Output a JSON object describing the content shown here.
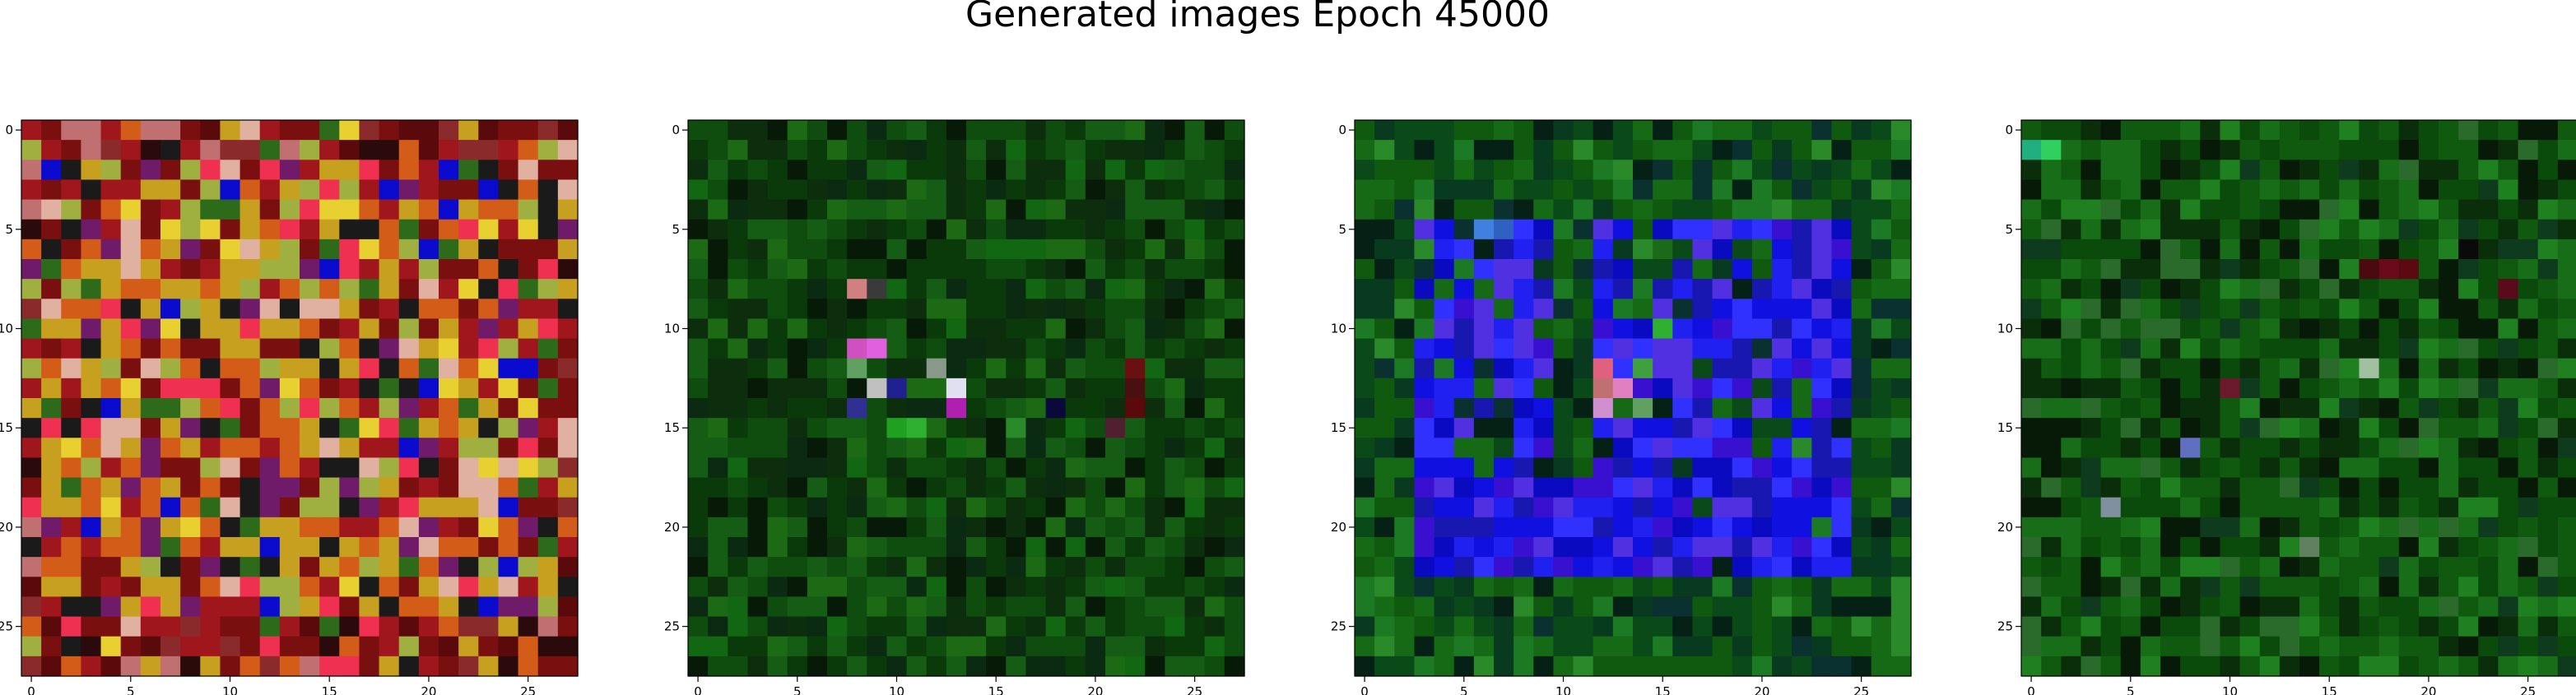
{
  "figure": {
    "title": "Generated images Epoch 45000"
  },
  "chart_data": [
    {
      "type": "heatmap",
      "rows": 28,
      "cols": 28,
      "xticks": [
        0,
        5,
        10,
        15,
        20,
        25
      ],
      "yticks": [
        0,
        5,
        10,
        15,
        20,
        25
      ],
      "xlim": [
        -0.5,
        27.5
      ],
      "ylim": [
        27.5,
        -0.5
      ],
      "palette": [
        "#7a0f10",
        "#a0161d",
        "#c8a020",
        "#d35d18",
        "#1a1a1a",
        "#0b0bd0",
        "#a0b040",
        "#e0b0a0",
        "#6f1b6a",
        "#2d6b1a",
        "#e7d030",
        "#f03050"
      ],
      "palette_weights": [
        10,
        8,
        10,
        9,
        5,
        3,
        6,
        4,
        4,
        3,
        3,
        3
      ],
      "edge_palette": [
        "#5a0a0a",
        "#7a0f10",
        "#a0161d",
        "#8a2a2a",
        "#c07070",
        "#2a0a0a"
      ],
      "seed": 11
    },
    {
      "type": "heatmap",
      "rows": 28,
      "cols": 28,
      "xticks": [
        0,
        5,
        10,
        15,
        20,
        25
      ],
      "yticks": [
        0,
        5,
        10,
        15,
        20,
        25
      ],
      "xlim": [
        -0.5,
        27.5
      ],
      "ylim": [
        27.5,
        -0.5
      ],
      "palette": [
        "#0a3a0a",
        "#0f4d0f",
        "#155c15",
        "#0c2e0c",
        "#071a07",
        "#1c6a14",
        "#0a2a12",
        "#126812"
      ],
      "palette_weights": [
        12,
        12,
        9,
        10,
        7,
        5,
        5,
        4
      ],
      "spots": [
        [
          11,
          8,
          "#d050c0"
        ],
        [
          11,
          9,
          "#e060e0"
        ],
        [
          12,
          8,
          "#60a060"
        ],
        [
          13,
          9,
          "#c0c0c0"
        ],
        [
          13,
          13,
          "#e0e0f0"
        ],
        [
          14,
          13,
          "#b020b0"
        ],
        [
          13,
          10,
          "#202090"
        ],
        [
          14,
          8,
          "#303090"
        ],
        [
          8,
          8,
          "#d08080"
        ],
        [
          8,
          9,
          "#3a3a3a"
        ],
        [
          12,
          12,
          "#8a9a8a"
        ],
        [
          13,
          22,
          "#4a1010"
        ],
        [
          12,
          22,
          "#6a1010"
        ],
        [
          14,
          22,
          "#5a0a0a"
        ],
        [
          15,
          21,
          "#502030"
        ],
        [
          14,
          18,
          "#0a0a3a"
        ],
        [
          15,
          10,
          "#20a020"
        ],
        [
          15,
          11,
          "#30b030"
        ],
        [
          15,
          16,
          "#2a8a2a"
        ]
      ],
      "seed": 23
    },
    {
      "type": "heatmap",
      "rows": 28,
      "cols": 28,
      "xticks": [
        0,
        5,
        10,
        15,
        20,
        25
      ],
      "yticks": [
        0,
        5,
        10,
        15,
        20,
        25
      ],
      "xlim": [
        -0.5,
        27.5
      ],
      "ylim": [
        27.5,
        -0.5
      ],
      "palette": [
        "#0a4a18",
        "#0f5a0f",
        "#166a16",
        "#083a20",
        "#052015",
        "#1d7a24",
        "#0a3030",
        "#2a8a2a"
      ],
      "palette_weights": [
        11,
        11,
        9,
        7,
        6,
        5,
        4,
        3
      ],
      "blue_palette": [
        "#1010e0",
        "#2020f0",
        "#3a10d0",
        "#0a0ac0",
        "#5030e0",
        "#1818b0",
        "#3030ff"
      ],
      "blue_regions": [
        [
          5,
          3,
          22,
          9
        ],
        [
          5,
          12,
          22,
          24
        ],
        [
          8,
          16,
          12,
          24
        ],
        [
          18,
          3,
          22,
          24
        ]
      ],
      "spots": [
        [
          12,
          12,
          "#e06080"
        ],
        [
          13,
          12,
          "#c07070"
        ],
        [
          13,
          13,
          "#e080c0"
        ],
        [
          14,
          12,
          "#d090d0"
        ],
        [
          14,
          14,
          "#60a060"
        ],
        [
          12,
          14,
          "#40a040"
        ],
        [
          6,
          14,
          "#2a8a2a"
        ],
        [
          6,
          15,
          "#1a6a1a"
        ],
        [
          10,
          15,
          "#30b030"
        ],
        [
          5,
          6,
          "#4080e0"
        ],
        [
          5,
          7,
          "#3060c0"
        ]
      ],
      "seed": 37
    },
    {
      "type": "heatmap",
      "rows": 28,
      "cols": 28,
      "xticks": [
        0,
        5,
        10,
        15,
        20,
        25
      ],
      "yticks": [
        0,
        5,
        10,
        15,
        20,
        25
      ],
      "xlim": [
        -0.5,
        27.5
      ],
      "ylim": [
        27.5,
        -0.5
      ],
      "palette": [
        "#0a4a0a",
        "#0f5a0f",
        "#186e18",
        "#0a2e0a",
        "#071a07",
        "#1f801f",
        "#2a6a2a",
        "#0e3a1e"
      ],
      "palette_weights": [
        11,
        11,
        9,
        9,
        6,
        5,
        4,
        4
      ],
      "spots": [
        [
          7,
          18,
          "#6a0a1a"
        ],
        [
          7,
          19,
          "#5a0a10"
        ],
        [
          7,
          17,
          "#4a0a10"
        ],
        [
          13,
          10,
          "#6a1a2a"
        ],
        [
          8,
          24,
          "#5a0a18"
        ],
        [
          16,
          8,
          "#6070c0"
        ],
        [
          19,
          4,
          "#8090a0"
        ],
        [
          21,
          14,
          "#608060"
        ],
        [
          12,
          17,
          "#a0c0a0"
        ],
        [
          1,
          1,
          "#30d060"
        ],
        [
          1,
          0,
          "#20b080"
        ],
        [
          6,
          22,
          "#0a0a0a"
        ]
      ],
      "seed": 53
    }
  ]
}
